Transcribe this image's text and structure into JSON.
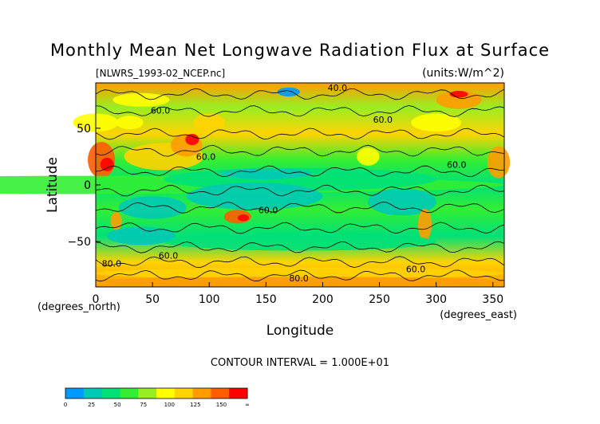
{
  "chart_data": {
    "type": "heatmap",
    "title": "Monthly Mean Net Longwave Radiation Flux at Surface",
    "subtitle_left": "[NLWRS_1993-02_NCEP.nc]",
    "subtitle_right": "(units:W/m^2)",
    "xlabel": "Longitude",
    "ylabel": "Latitude",
    "x_unit_label": "(degrees_east)",
    "y_unit_label": "(degrees_north)",
    "xlim": [
      0,
      360
    ],
    "ylim": [
      -90,
      90
    ],
    "x_ticks": [
      0,
      50,
      100,
      150,
      200,
      250,
      300,
      350
    ],
    "y_ticks": [
      50,
      0,
      -50
    ],
    "x_tick_labels": [
      "0",
      "50",
      "100",
      "150",
      "200",
      "250",
      "300",
      "350"
    ],
    "y_tick_labels": [
      "50",
      "0",
      "−50"
    ],
    "contour_interval_text": "CONTOUR INTERVAL = 1.000E+01",
    "contour_labels": [
      {
        "text": "40.0",
        "lon": 213,
        "lat": 83
      },
      {
        "text": "60.0",
        "lon": 57,
        "lat": 63
      },
      {
        "text": "60.0",
        "lon": 253,
        "lat": 55
      },
      {
        "text": "60.0",
        "lon": 318,
        "lat": 15
      },
      {
        "text": "60.0",
        "lon": 97,
        "lat": 22
      },
      {
        "text": "60.0",
        "lon": 152,
        "lat": -25
      },
      {
        "text": "60.0",
        "lon": 64,
        "lat": -65
      },
      {
        "text": "80.0",
        "lon": 14,
        "lat": -72
      },
      {
        "text": "80.0",
        "lon": 179,
        "lat": -85
      },
      {
        "text": "60.0",
        "lon": 282,
        "lat": -77
      }
    ],
    "colorbar": {
      "tick_labels": [
        "0",
        "25",
        "50",
        "75",
        "100",
        "125",
        "150",
        "∞"
      ],
      "colors": [
        "#0099ff",
        "#00c9b5",
        "#00e079",
        "#33ee33",
        "#99ee22",
        "#ffff00",
        "#ffd300",
        "#ff9c00",
        "#ff5c00",
        "#ff0000"
      ]
    },
    "grid": false
  }
}
